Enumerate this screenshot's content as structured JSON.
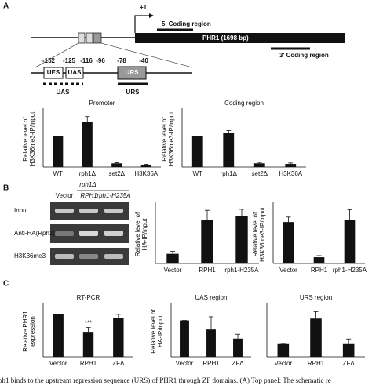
{
  "panel_a": {
    "letter": "A",
    "tss": "+1",
    "coding5": "5' Coding region",
    "gene": "PHR1 (1698 bp)",
    "coding3": "3' Coding region",
    "positions": [
      "-152",
      "-125",
      "-116",
      "-96",
      "-78",
      "-40"
    ],
    "boxes": [
      "UES",
      "UAS",
      "URS"
    ],
    "region_uas": "UAS",
    "region_urs": "URS"
  },
  "panel_b": {
    "letter": "B",
    "strain": "rph1Δ",
    "lanes": [
      "Vector",
      "RPH1",
      "rph1-H235A"
    ],
    "rows": [
      "Input",
      "Anti-HA(Rph1)",
      "H3K36me3"
    ]
  },
  "panel_c": {
    "letter": "C"
  },
  "caption": "ph1 binds to the upstream repression sequence (URS) of PHR1 through ZF domains. (A) Top panel: The schematic re",
  "chart_data": [
    {
      "type": "bar",
      "title": "Promoter",
      "ylabel": [
        "Relative level of",
        "H3K36me3-IP/input"
      ],
      "categories": [
        "WT",
        "rph1Δ",
        "set2Δ",
        "H3K36A"
      ],
      "values": [
        1,
        1.45,
        0.12,
        0.06
      ],
      "errors": [
        0,
        0.18,
        0.02,
        0.03
      ],
      "ylim": [
        0,
        1.8
      ],
      "color": "#111111"
    },
    {
      "type": "bar",
      "title": "Coding region",
      "ylabel": [
        "Relative level of",
        "H3K36me3-IP/input"
      ],
      "categories": [
        "WT",
        "rph1Δ",
        "set2Δ",
        "H3K36A"
      ],
      "values": [
        1,
        1.1,
        0.12,
        0.1
      ],
      "errors": [
        0,
        0.08,
        0.03,
        0.03
      ],
      "ylim": [
        0,
        1.8
      ],
      "color": "#111111"
    },
    {
      "type": "bar",
      "ylabel": [
        "Relative level of",
        "HA-IP/input"
      ],
      "categories": [
        "Vector",
        "RPH1",
        "rph1-H235A"
      ],
      "values": [
        1,
        4.5,
        4.9
      ],
      "errors": [
        0.25,
        1,
        0.7
      ],
      "ylim": [
        0,
        6
      ],
      "color": "#111111"
    },
    {
      "type": "bar",
      "ylabel": [
        "Relative level of",
        "H3K36me3-IP/input"
      ],
      "categories": [
        "Vector",
        "RPH1",
        "rph1-H235A"
      ],
      "values": [
        1,
        0.15,
        1.05
      ],
      "errors": [
        0.12,
        0.04,
        0.25
      ],
      "ylim": [
        0,
        1.4
      ],
      "color": "#111111"
    },
    {
      "type": "bar",
      "title": "RT-PCR",
      "ylabel": [
        "Relative PHR1",
        "expression"
      ],
      "categories": [
        "Vector",
        "RPH1",
        "ZFΔ"
      ],
      "values": [
        1,
        0.57,
        0.92
      ],
      "errors": [
        0,
        0.12,
        0.08
      ],
      "ylim": [
        0,
        1.2
      ],
      "color": "#111111",
      "annotation": "***"
    },
    {
      "type": "bar",
      "title": "UAS region",
      "ylabel": [
        "Relative level of",
        "HA-IP/input"
      ],
      "categories": [
        "Vector",
        "RPH1",
        "ZFΔ"
      ],
      "values": [
        1,
        0.75,
        0.5
      ],
      "errors": [
        0,
        0.35,
        0.12
      ],
      "ylim": [
        0,
        1.4
      ],
      "color": "#111111"
    },
    {
      "type": "bar",
      "title": "URS region",
      "categories": [
        "Vector",
        "RPH1",
        "ZFΔ"
      ],
      "values": [
        1,
        3,
        1
      ],
      "errors": [
        0,
        0.55,
        0.4
      ],
      "ylim": [
        0,
        4
      ],
      "color": "#111111"
    }
  ]
}
